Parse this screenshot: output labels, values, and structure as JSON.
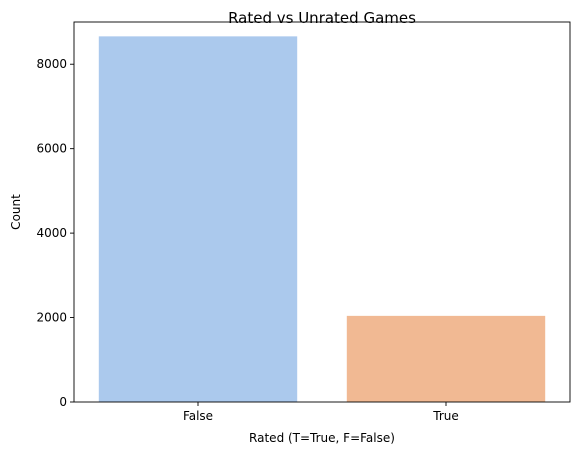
{
  "chart_data": {
    "type": "bar",
    "title": "Rated vs Unrated Games",
    "xlabel": "Rated (T=True, F=False)",
    "ylabel": "Count",
    "categories": [
      "False",
      "True"
    ],
    "values": [
      8660,
      2040
    ],
    "colors": [
      "#abc9ed",
      "#f1b993"
    ],
    "ylim": [
      0,
      9000
    ],
    "yticks": [
      0,
      2000,
      4000,
      6000,
      8000
    ],
    "ytick_labels": [
      "0",
      "2000",
      "4000",
      "6000",
      "8000"
    ],
    "grid": false,
    "legend": "none"
  }
}
